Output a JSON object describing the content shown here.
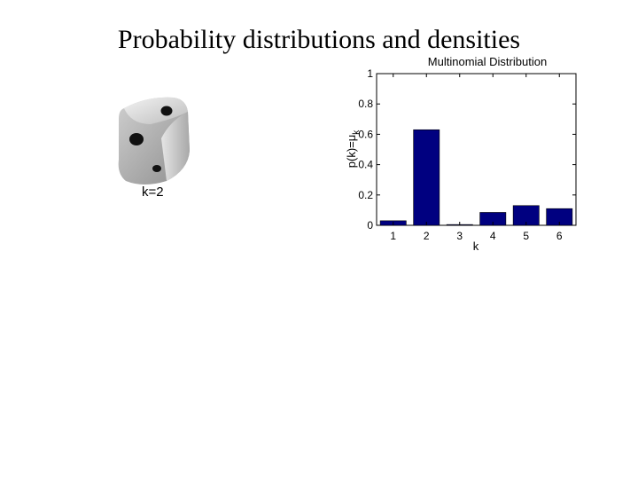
{
  "slide": {
    "title": "Probability distributions and densities"
  },
  "dice_figure": {
    "caption": "k=2"
  },
  "colors": {
    "bar_fill": "#000080",
    "axis": "#000000",
    "die_face": "#d6d6d6"
  },
  "chart_data": {
    "type": "bar",
    "title": "Multinomial Distribution",
    "xlabel": "k",
    "ylabel": "p(k)=μk",
    "categories": [
      "1",
      "2",
      "3",
      "4",
      "5",
      "6"
    ],
    "values": [
      0.03,
      0.63,
      0.005,
      0.085,
      0.13,
      0.11
    ],
    "ylim": [
      0,
      1
    ],
    "yticks": [
      0,
      0.2,
      0.4,
      0.6,
      0.8,
      1
    ],
    "ytick_labels": [
      "0",
      "0.2",
      "0.4",
      "0.6",
      "0.8",
      "1"
    ],
    "grid": false,
    "legend": "none"
  }
}
